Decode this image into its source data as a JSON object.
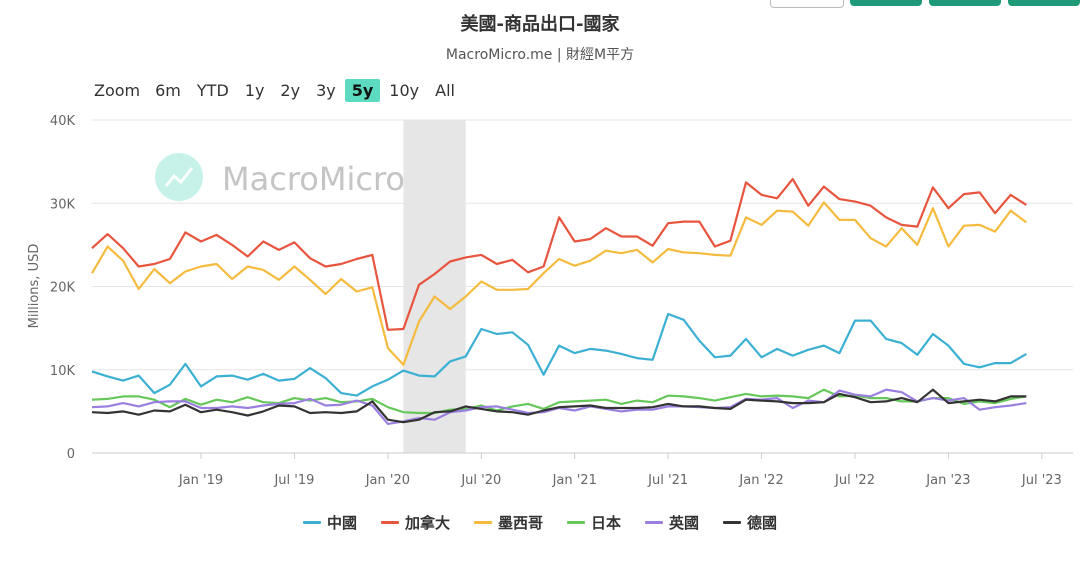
{
  "header": {
    "title": "美國-商品出口-國家",
    "subtitle": "MacroMicro.me | 財經M平方"
  },
  "zoom": {
    "label": "Zoom",
    "options": [
      "6m",
      "YTD",
      "1y",
      "2y",
      "3y",
      "5y",
      "10y",
      "All"
    ],
    "active": "5y"
  },
  "watermark": "MacroMicro",
  "colors": {
    "china": "#3cb0d3",
    "canada": "#e8553e",
    "mexico": "#f5bb3f",
    "japan": "#66c75a",
    "uk": "#9b7fe0",
    "germany": "#333333",
    "shade": "#e6e6e6",
    "watermark_logo": "#5ddbc0"
  },
  "chart_data": {
    "type": "line",
    "ylabel": "Millions, USD",
    "ylim": [
      0,
      40000
    ],
    "yticks": [
      0,
      10000,
      20000,
      30000,
      40000
    ],
    "ytick_labels": [
      "0",
      "10K",
      "20K",
      "30K",
      "40K"
    ],
    "x_start": "2018-06",
    "x_end": "2023-09",
    "xticks": [
      {
        "date": "2019-01",
        "label": "Jan '19"
      },
      {
        "date": "2019-07",
        "label": "Jul '19"
      },
      {
        "date": "2020-01",
        "label": "Jan '20"
      },
      {
        "date": "2020-07",
        "label": "Jul '20"
      },
      {
        "date": "2021-01",
        "label": "Jan '21"
      },
      {
        "date": "2021-07",
        "label": "Jul '21"
      },
      {
        "date": "2022-01",
        "label": "Jan '22"
      },
      {
        "date": "2022-07",
        "label": "Jul '22"
      },
      {
        "date": "2023-01",
        "label": "Jan '23"
      },
      {
        "date": "2023-07",
        "label": "Jul '23"
      }
    ],
    "shaded_period": [
      "2020-02",
      "2020-06"
    ],
    "grid": true,
    "legend_position": "bottom",
    "series": [
      {
        "key": "china",
        "name": "中國",
        "values": [
          9800,
          9200,
          8700,
          9300,
          7200,
          8200,
          10700,
          8000,
          9200,
          9300,
          8800,
          9500,
          8700,
          8900,
          10200,
          9000,
          7200,
          6900,
          8000,
          8800,
          9900,
          9300,
          9200,
          11000,
          11600,
          14900,
          14300,
          14500,
          13000,
          9400,
          12900,
          12000,
          12500,
          12300,
          11900,
          11400,
          11200,
          16700,
          16000,
          13500,
          11500,
          11700,
          13700,
          11500,
          12500,
          11700,
          12400,
          12900,
          12000,
          15900,
          15900,
          13700,
          13200,
          11800,
          14300,
          12900,
          10700,
          10300,
          10800,
          10800,
          11900
        ]
      },
      {
        "key": "canada",
        "name": "加拿大",
        "values": [
          24600,
          26300,
          24600,
          22400,
          22700,
          23300,
          26500,
          25400,
          26200,
          25000,
          23600,
          25400,
          24400,
          25300,
          23400,
          22400,
          22700,
          23300,
          23800,
          14800,
          14900,
          20200,
          21500,
          23000,
          23500,
          23800,
          22700,
          23200,
          21700,
          22400,
          28300,
          25400,
          25700,
          27000,
          26000,
          26000,
          24900,
          27600,
          27800,
          27800,
          24800,
          25500,
          32500,
          31000,
          30600,
          32900,
          29700,
          32000,
          30500,
          30200,
          29700,
          28300,
          27400,
          27200,
          31900,
          29400,
          31100,
          31300,
          28800,
          31000,
          29800
        ]
      },
      {
        "key": "mexico",
        "name": "墨西哥",
        "values": [
          21600,
          24800,
          23100,
          19700,
          22100,
          20400,
          21800,
          22400,
          22700,
          20900,
          22400,
          22000,
          20800,
          22400,
          20800,
          19100,
          20900,
          19400,
          19900,
          12600,
          10600,
          15800,
          18800,
          17300,
          18800,
          20600,
          19600,
          19600,
          19700,
          21600,
          23300,
          22500,
          23100,
          24300,
          24000,
          24400,
          22900,
          24500,
          24100,
          24000,
          23800,
          23700,
          28300,
          27400,
          29100,
          29000,
          27300,
          30100,
          28000,
          28000,
          25800,
          24800,
          27000,
          25000,
          29400,
          24800,
          27300,
          27400,
          26600,
          29100,
          27700
        ]
      },
      {
        "key": "japan",
        "name": "日本",
        "values": [
          6400,
          6500,
          6800,
          6800,
          6400,
          5500,
          6500,
          5800,
          6400,
          6100,
          6700,
          6100,
          6000,
          6600,
          6300,
          6600,
          6100,
          6200,
          6500,
          5500,
          4900,
          4800,
          4800,
          5200,
          5300,
          5700,
          5100,
          5600,
          5900,
          5300,
          6100,
          6200,
          6300,
          6400,
          5900,
          6300,
          6100,
          6900,
          6800,
          6600,
          6300,
          6700,
          7100,
          6800,
          6900,
          6800,
          6600,
          7600,
          6800,
          6900,
          6600,
          6600,
          6200,
          6200,
          6600,
          6600,
          5900,
          6200,
          6000,
          6500,
          6800
        ]
      },
      {
        "key": "uk",
        "name": "英國",
        "values": [
          5500,
          5600,
          6000,
          5600,
          6100,
          6200,
          6200,
          5400,
          5400,
          5600,
          5400,
          5700,
          5900,
          6000,
          6500,
          5700,
          5800,
          6300,
          5700,
          3500,
          3800,
          4200,
          4000,
          4900,
          5100,
          5500,
          5600,
          5200,
          4800,
          4900,
          5400,
          5100,
          5600,
          5300,
          5000,
          5200,
          5200,
          5600,
          5600,
          5500,
          5400,
          5500,
          6500,
          6400,
          6600,
          5400,
          6300,
          6100,
          7500,
          7000,
          6800,
          7600,
          7300,
          6200,
          6600,
          6300,
          6600,
          5200,
          5500,
          5700,
          6000
        ]
      },
      {
        "key": "germany",
        "name": "德國",
        "values": [
          4900,
          4800,
          5000,
          4600,
          5100,
          5000,
          5800,
          4900,
          5200,
          4900,
          4500,
          5000,
          5700,
          5600,
          4800,
          4900,
          4800,
          5000,
          6200,
          4000,
          3700,
          4000,
          4900,
          5000,
          5600,
          5300,
          5000,
          4900,
          4600,
          5100,
          5500,
          5600,
          5700,
          5400,
          5400,
          5400,
          5500,
          5900,
          5600,
          5600,
          5400,
          5300,
          6400,
          6300,
          6200,
          6000,
          6000,
          6100,
          7100,
          6700,
          6100,
          6200,
          6600,
          6100,
          7600,
          6000,
          6200,
          6400,
          6200,
          6800,
          6800
        ]
      }
    ]
  }
}
